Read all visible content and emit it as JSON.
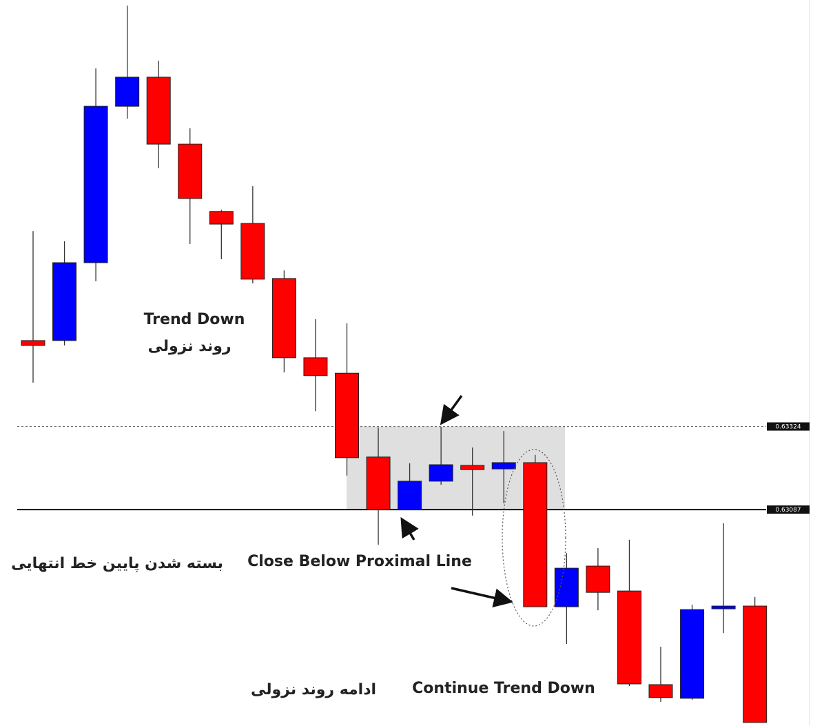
{
  "chart_data": {
    "type": "candlestick",
    "open": [
      0.63569,
      0.63569,
      0.63791,
      0.64237,
      0.6432,
      0.64129,
      0.63937,
      0.63903,
      0.63746,
      0.6352,
      0.63476,
      0.63237,
      0.63087,
      0.63168,
      0.63213,
      0.63203,
      0.63221,
      0.6281,
      0.62926,
      0.62855,
      0.62588,
      0.62549,
      0.62804,
      0.62812
    ],
    "high": [
      0.63881,
      0.63852,
      0.64345,
      0.64524,
      0.64367,
      0.64174,
      0.63942,
      0.64009,
      0.63769,
      0.6363,
      0.63618,
      0.63321,
      0.63219,
      0.63323,
      0.63264,
      0.63311,
      0.63243,
      0.62963,
      0.62977,
      0.63001,
      0.62696,
      0.62816,
      0.63048,
      0.62838
    ],
    "low": [
      0.63449,
      0.63555,
      0.63738,
      0.64202,
      0.6406,
      0.63844,
      0.63801,
      0.63732,
      0.63478,
      0.63368,
      0.63184,
      0.62987,
      0.63087,
      0.63158,
      0.6307,
      0.63105,
      0.6281,
      0.62704,
      0.628,
      0.62584,
      0.62539,
      0.62545,
      0.62735,
      0.6248
    ],
    "close": [
      0.63555,
      0.63791,
      0.64237,
      0.6432,
      0.64129,
      0.63974,
      0.63901,
      0.63744,
      0.6352,
      0.63469,
      0.63235,
      0.63087,
      0.63168,
      0.63215,
      0.63201,
      0.63221,
      0.6281,
      0.6292,
      0.62851,
      0.6259,
      0.62551,
      0.62802,
      0.62812,
      0.6248
    ],
    "up_color": "#0000ff",
    "down_color": "#ff0000",
    "ylim": [
      0.6247,
      0.6454
    ],
    "levels": [
      0.63324,
      0.63087
    ],
    "level_styles": [
      "dashed",
      "solid"
    ],
    "annotations": [
      "Trend Down",
      "روند نزولی",
      "Close Below Proximal Line",
      "بسته شدن پایین خط انتهایی",
      "Continue Trend Down",
      "ادامه روند نزولی"
    ]
  }
}
